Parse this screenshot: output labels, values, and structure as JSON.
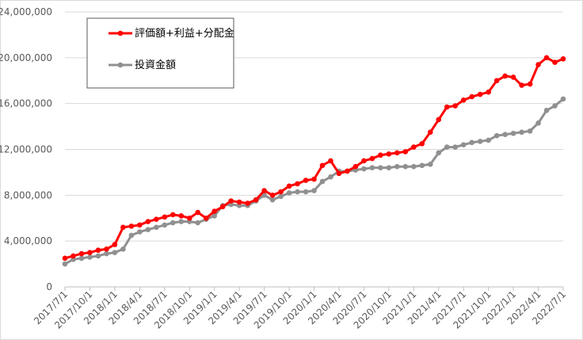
{
  "chart_data": {
    "type": "line",
    "categories": [
      "2017/7/1",
      null,
      null,
      "2017/10/1",
      null,
      null,
      "2018/1/1",
      null,
      null,
      "2018/4/1",
      null,
      null,
      "2018/7/1",
      null,
      null,
      "2018/10/1",
      null,
      null,
      "2019/1/1",
      null,
      null,
      "2019/4/1",
      null,
      null,
      "2019/7/1",
      null,
      null,
      "2019/10/1",
      null,
      null,
      "2020/1/1",
      null,
      null,
      "2020/4/1",
      null,
      null,
      "2020/7/1",
      null,
      null,
      "2020/10/1",
      null,
      null,
      "2021/1/1",
      null,
      null,
      "2021/4/1",
      null,
      null,
      "2021/7/1",
      null,
      null,
      "2021/10/1",
      null,
      null,
      "2022/1/1",
      null,
      null,
      "2022/4/1",
      null,
      null,
      "2022/7/1"
    ],
    "series": [
      {
        "name": "評価額+利益+分配金",
        "color": "#ff0000",
        "values": [
          2500000,
          2700000,
          2900000,
          3000000,
          3200000,
          3300000,
          3700000,
          5200000,
          5300000,
          5400000,
          5700000,
          5900000,
          6100000,
          6300000,
          6200000,
          6000000,
          6500000,
          6000000,
          6600000,
          7000000,
          7500000,
          7400000,
          7300000,
          7600000,
          8400000,
          8000000,
          8300000,
          8800000,
          9000000,
          9300000,
          9400000,
          10600000,
          11000000,
          9900000,
          10100000,
          10500000,
          11000000,
          11200000,
          11500000,
          11600000,
          11700000,
          11800000,
          12200000,
          12500000,
          13500000,
          14600000,
          15700000,
          15800000,
          16300000,
          16600000,
          16800000,
          17000000,
          18000000,
          18400000,
          18300000,
          17600000,
          17700000,
          19400000,
          20000000,
          19600000,
          19900000
        ]
      },
      {
        "name": "投資金額",
        "color": "#909090",
        "values": [
          2000000,
          2400000,
          2500000,
          2600000,
          2700000,
          2900000,
          3000000,
          3300000,
          4500000,
          4800000,
          5000000,
          5200000,
          5400000,
          5600000,
          5700000,
          5700000,
          5600000,
          5900000,
          6200000,
          7100000,
          7200000,
          7100000,
          7100000,
          7500000,
          8000000,
          7600000,
          7900000,
          8200000,
          8300000,
          8300000,
          8400000,
          9200000,
          9600000,
          10100000,
          10100000,
          10200000,
          10300000,
          10400000,
          10400000,
          10400000,
          10500000,
          10500000,
          10500000,
          10600000,
          10700000,
          11700000,
          12200000,
          12200000,
          12400000,
          12600000,
          12700000,
          12800000,
          13200000,
          13300000,
          13400000,
          13500000,
          13600000,
          14300000,
          15400000,
          15800000,
          16400000
        ]
      }
    ],
    "ylim": [
      0,
      24000000
    ],
    "yticks": [
      0,
      {
        "value": 4000000,
        "label": "4,000,000"
      },
      {
        "value": 8000000,
        "label": "8,000,000"
      },
      {
        "value": 12000000,
        "label": "12,000,000"
      },
      {
        "value": 16000000,
        "label": "16,000,000"
      },
      {
        "value": 20000000,
        "label": "20,000,000"
      },
      {
        "value": 24000000,
        "label": "24,000,000"
      }
    ],
    "grid": true
  }
}
